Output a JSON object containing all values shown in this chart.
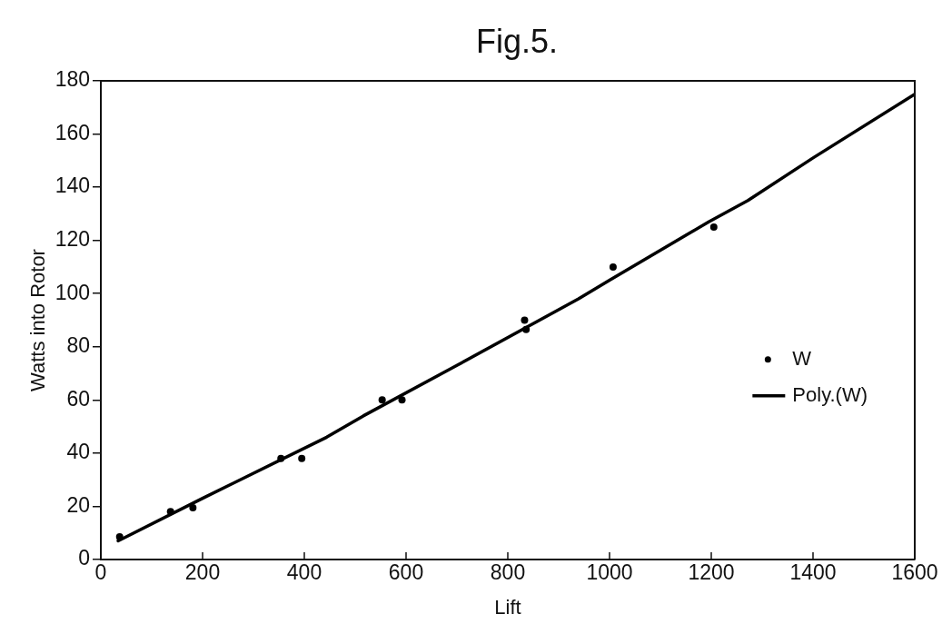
{
  "chart_data": {
    "type": "scatter",
    "title": "Fig.5.",
    "xlabel": "Lift",
    "ylabel": "Watts into Rotor",
    "xlim": [
      0,
      1600
    ],
    "ylim": [
      0,
      180
    ],
    "xticks": [
      0,
      200,
      400,
      600,
      800,
      1000,
      1200,
      1400,
      1600
    ],
    "yticks": [
      0,
      20,
      40,
      60,
      80,
      100,
      120,
      140,
      160,
      180
    ],
    "legend": "right",
    "x": [
      37,
      137,
      181,
      354,
      395,
      553,
      592,
      833,
      836,
      1007,
      1205
    ],
    "series": [
      {
        "name": "W",
        "color": "#000000",
        "marker": "circle",
        "values": [
          8.5,
          18,
          19.5,
          38,
          38,
          60,
          60,
          90,
          86.5,
          110,
          125
        ]
      },
      {
        "name": "Poly.(W)",
        "type": "line",
        "color": "#000000",
        "marker": "none",
        "x": [
          34,
          200,
          444,
          516,
          700,
          939,
          1000,
          1195,
          1272,
          1400,
          1600
        ],
        "values": [
          7,
          23,
          46,
          54,
          73,
          98,
          105,
          127,
          135,
          151,
          175
        ]
      }
    ]
  }
}
